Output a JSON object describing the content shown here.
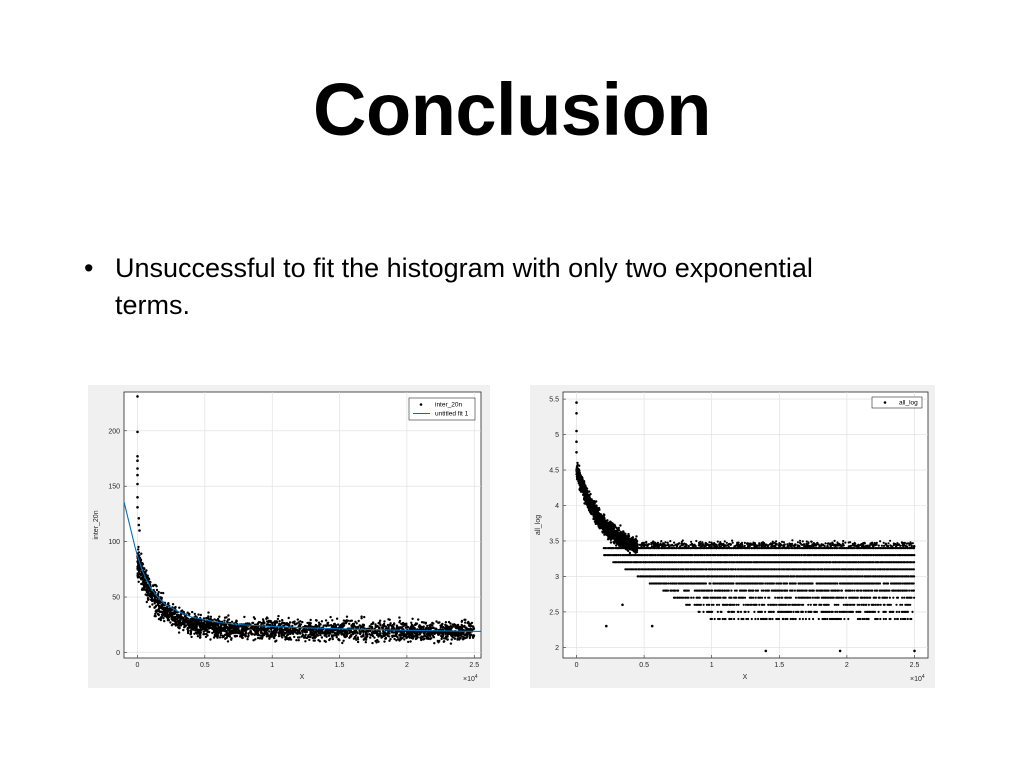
{
  "slide": {
    "title": "Conclusion",
    "bullets": [
      "Unsuccessful to fit the histogram with only two exponential terms."
    ]
  },
  "colors": {
    "background": "#ffffff",
    "figure_background": "#f0f0f0",
    "points": "#000000",
    "fit_line": "#0072bd",
    "grid": "#dddddd"
  },
  "chart_data": [
    {
      "type": "scatter",
      "xlabel": "X",
      "ylabel": "inter_20n",
      "xlim": [
        -1000,
        25500
      ],
      "ylim": [
        -5,
        235
      ],
      "x_ticks": [
        0,
        5000,
        10000,
        15000,
        20000,
        25000
      ],
      "x_tick_labels": [
        "0",
        "0.5",
        "1",
        "1.5",
        "2",
        "2.5"
      ],
      "y_ticks": [
        0,
        50,
        100,
        150,
        200
      ],
      "y_tick_labels": [
        "0",
        "50",
        "100",
        "150",
        "200"
      ],
      "x_multiplier": "×10",
      "x_multiplier_exp": "4",
      "grid": true,
      "legend_position": "top-right",
      "series": [
        {
          "name": "inter_20n",
          "style": "points",
          "outliers": [
            [
              0,
              231
            ],
            [
              0,
              199
            ],
            [
              0,
              177
            ],
            [
              0,
              173
            ],
            [
              0,
              166
            ],
            [
              0,
              160
            ],
            [
              0,
              152
            ],
            [
              0,
              140
            ],
            [
              0,
              131
            ],
            [
              100,
              121
            ],
            [
              100,
              115
            ],
            [
              150,
              110
            ]
          ],
          "trend": "19 + 60*exp(-x/1500) + 4*exp(-x/9000)",
          "spread": 9
        },
        {
          "name": "untitled fit 1",
          "style": "line",
          "x": [
            -1000,
            -600,
            -200,
            0,
            300,
            600,
            1000,
            1500,
            2000,
            3000,
            4000,
            6000,
            8000,
            10000,
            13000,
            16000,
            20000,
            25500
          ],
          "y": [
            136,
            116,
            96,
            87,
            76,
            67,
            58,
            50,
            44,
            37,
            32,
            27,
            24.8,
            23.5,
            22,
            21,
            20,
            19
          ]
        }
      ]
    },
    {
      "type": "scatter",
      "xlabel": "X",
      "ylabel": "all_log",
      "xlim": [
        -1000,
        26000
      ],
      "ylim": [
        1.85,
        5.6
      ],
      "x_ticks": [
        0,
        5000,
        10000,
        15000,
        20000,
        25000
      ],
      "x_tick_labels": [
        "0",
        "0.5",
        "1",
        "1.5",
        "2",
        "2.5"
      ],
      "y_ticks": [
        2,
        2.5,
        3,
        3.5,
        4,
        4.5,
        5,
        5.5
      ],
      "y_tick_labels": [
        "2",
        "2.5",
        "3",
        "3.5",
        "4",
        "4.5",
        "5",
        "5.5"
      ],
      "x_multiplier": "×10",
      "x_multiplier_exp": "4",
      "grid": true,
      "legend_position": "top-right",
      "series": [
        {
          "name": "all_log",
          "style": "points",
          "outliers": [
            [
              0,
              5.45
            ],
            [
              0,
              5.3
            ],
            [
              0,
              5.05
            ],
            [
              0,
              4.9
            ],
            [
              0,
              4.75
            ],
            [
              14000,
              1.95
            ],
            [
              19500,
              1.95
            ],
            [
              25000,
              1.95
            ],
            [
              2200,
              2.3
            ],
            [
              3400,
              2.6
            ],
            [
              5600,
              2.3
            ]
          ],
          "trend": "3.3 + 1.2*exp(-x/2000)",
          "levels": [
            2.4,
            2.5,
            2.6,
            2.7,
            2.8,
            2.9,
            3.0,
            3.1,
            3.2,
            3.3,
            3.4
          ]
        }
      ]
    }
  ]
}
